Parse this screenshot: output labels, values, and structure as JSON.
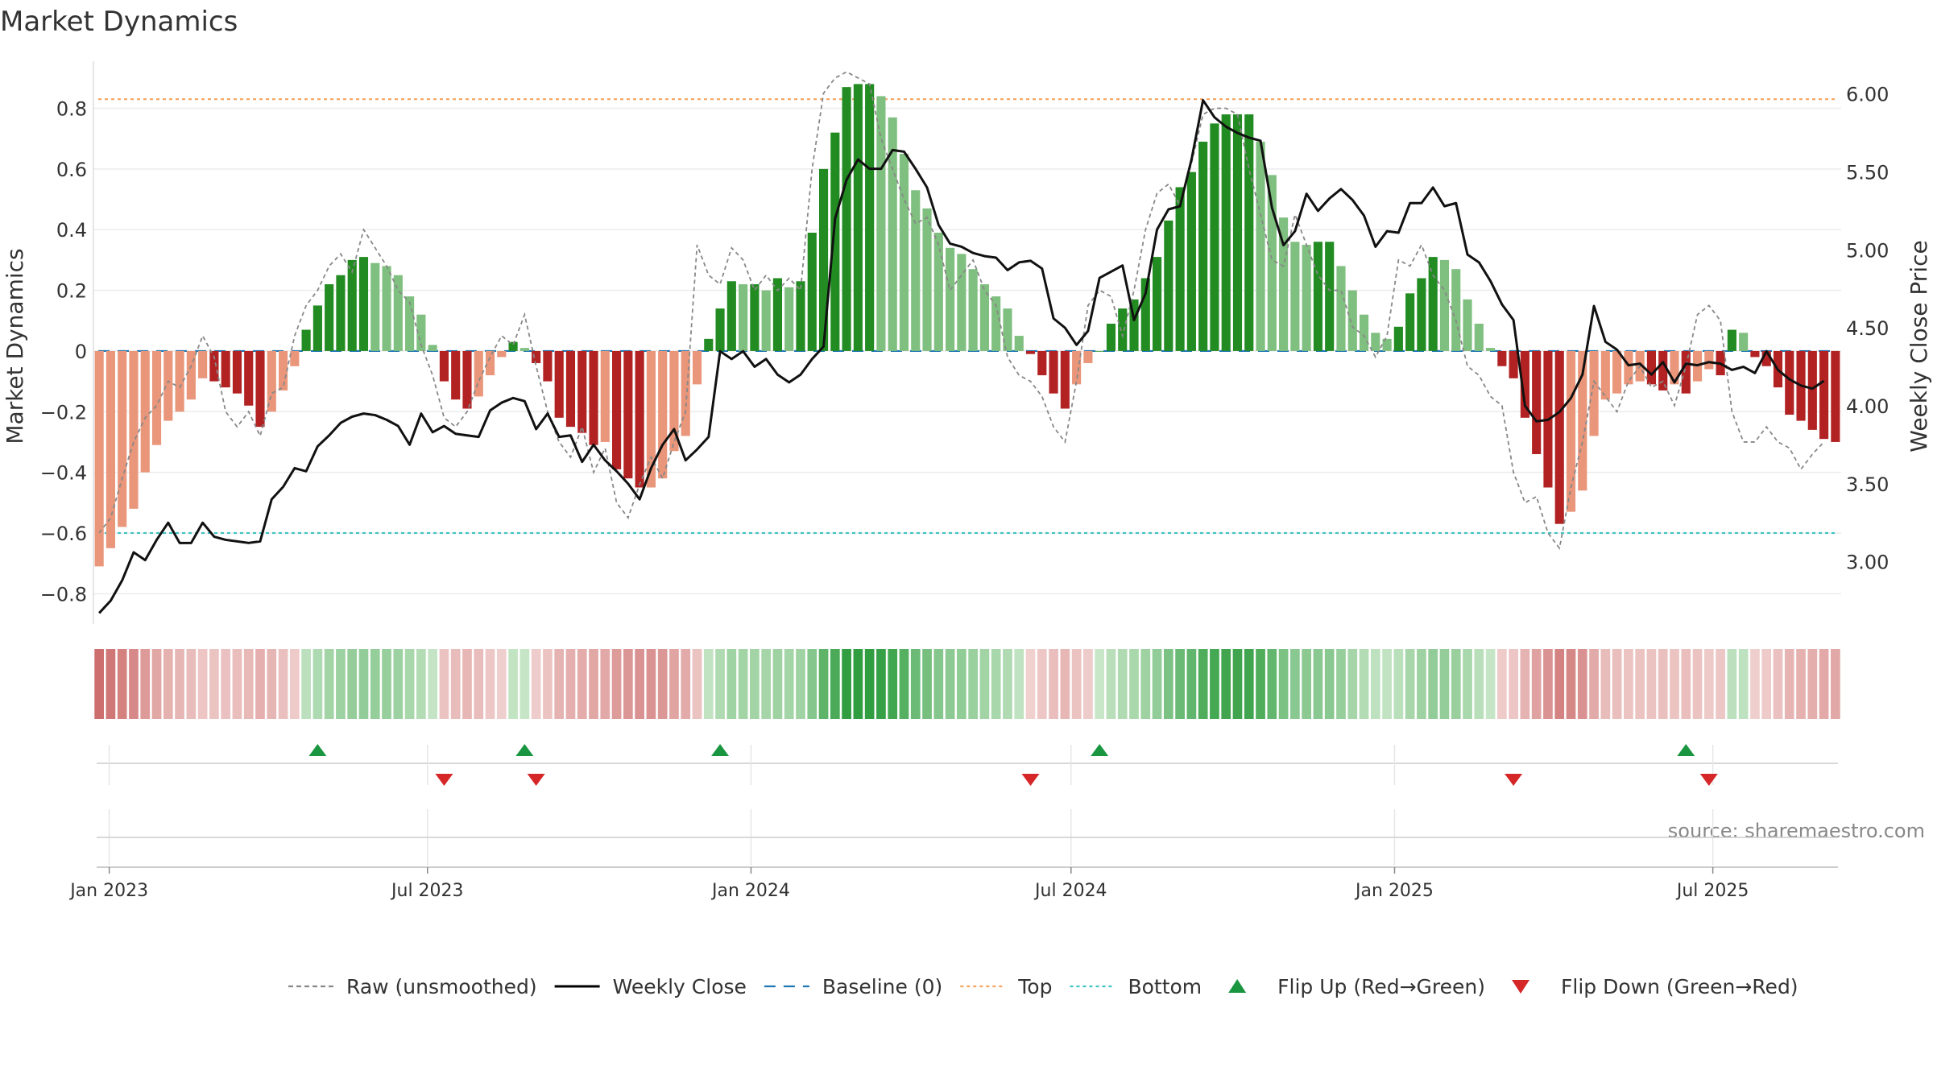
{
  "chart_data": {
    "type": "bar",
    "title": "Market Dynamics",
    "ylabel_left": "Market Dynamics",
    "ylabel_right": "Weekly Close Price",
    "source": "source: sharemaestro.com",
    "ylim_left": [
      -0.9,
      0.95
    ],
    "ylim_right": [
      2.6,
      6.2
    ],
    "yticks_left": [
      -0.8,
      -0.6,
      -0.4,
      -0.2,
      0,
      0.2,
      0.4,
      0.6,
      0.8
    ],
    "yticks_left_labels": [
      "−0.8",
      "−0.6",
      "−0.4",
      "−0.2",
      "0",
      "0.2",
      "0.4",
      "0.6",
      "0.8"
    ],
    "yticks_right": [
      3.0,
      3.5,
      4.0,
      4.5,
      5.0,
      5.5,
      6.0
    ],
    "yticks_right_labels": [
      "3.00",
      "3.50",
      "4.00",
      "4.50",
      "5.00",
      "5.50",
      "6.00"
    ],
    "x_start": "2022-12-23",
    "x_end": "2025-09-12",
    "xticks": [
      "Jan 2023",
      "Jul 2023",
      "Jan 2024",
      "Jul 2024",
      "Jan 2025",
      "Jul 2025"
    ],
    "xtick_dates": [
      "2023-01-01",
      "2023-07-01",
      "2024-01-01",
      "2024-07-01",
      "2025-01-01",
      "2025-07-01"
    ],
    "top_line": 0.83,
    "bottom_line": -0.6,
    "baseline": 0,
    "dynamics": [
      -0.71,
      -0.65,
      -0.58,
      -0.52,
      -0.4,
      -0.31,
      -0.23,
      -0.2,
      -0.16,
      -0.09,
      -0.1,
      -0.12,
      -0.14,
      -0.18,
      -0.25,
      -0.2,
      -0.13,
      -0.05,
      0.07,
      0.15,
      0.22,
      0.25,
      0.3,
      0.31,
      0.29,
      0.28,
      0.25,
      0.18,
      0.12,
      0.02,
      -0.1,
      -0.16,
      -0.19,
      -0.15,
      -0.08,
      -0.02,
      0.03,
      0.01,
      -0.04,
      -0.1,
      -0.22,
      -0.25,
      -0.27,
      -0.31,
      -0.3,
      -0.39,
      -0.42,
      -0.45,
      -0.45,
      -0.42,
      -0.33,
      -0.28,
      -0.11,
      0.04,
      0.14,
      0.23,
      0.22,
      0.22,
      0.2,
      0.24,
      0.21,
      0.23,
      0.39,
      0.6,
      0.72,
      0.87,
      0.88,
      0.88,
      0.84,
      0.77,
      0.65,
      0.53,
      0.47,
      0.39,
      0.34,
      0.32,
      0.27,
      0.22,
      0.18,
      0.14,
      0.05,
      -0.01,
      -0.08,
      -0.14,
      -0.19,
      -0.11,
      -0.04,
      0.0,
      0.09,
      0.14,
      0.17,
      0.24,
      0.31,
      0.43,
      0.54,
      0.59,
      0.69,
      0.75,
      0.78,
      0.78,
      0.78,
      0.69,
      0.58,
      0.44,
      0.36,
      0.35,
      0.36,
      0.36,
      0.28,
      0.2,
      0.12,
      0.06,
      0.04,
      0.08,
      0.19,
      0.24,
      0.31,
      0.3,
      0.27,
      0.17,
      0.09,
      0.01,
      -0.05,
      -0.09,
      -0.22,
      -0.34,
      -0.45,
      -0.57,
      -0.53,
      -0.46,
      -0.28,
      -0.16,
      -0.14,
      -0.11,
      -0.1,
      -0.11,
      -0.13,
      -0.11,
      -0.14,
      -0.1,
      -0.06,
      -0.08,
      0.07,
      0.06,
      -0.02,
      -0.05,
      -0.12,
      -0.21,
      -0.23,
      -0.26,
      -0.29,
      -0.3
    ],
    "raw": [
      -0.6,
      -0.55,
      -0.42,
      -0.3,
      -0.22,
      -0.18,
      -0.1,
      -0.12,
      -0.05,
      0.05,
      -0.02,
      -0.2,
      -0.25,
      -0.2,
      -0.28,
      -0.14,
      -0.12,
      0.05,
      0.15,
      0.2,
      0.28,
      0.32,
      0.26,
      0.4,
      0.34,
      0.28,
      0.2,
      0.16,
      0.02,
      -0.08,
      -0.22,
      -0.25,
      -0.2,
      -0.1,
      -0.02,
      0.05,
      0.02,
      0.12,
      -0.05,
      -0.2,
      -0.3,
      -0.35,
      -0.25,
      -0.4,
      -0.32,
      -0.5,
      -0.55,
      -0.44,
      -0.35,
      -0.42,
      -0.3,
      -0.2,
      0.35,
      0.25,
      0.22,
      0.34,
      0.3,
      0.2,
      0.25,
      0.2,
      0.24,
      0.2,
      0.6,
      0.85,
      0.9,
      0.92,
      0.9,
      0.88,
      0.7,
      0.6,
      0.5,
      0.42,
      0.44,
      0.35,
      0.2,
      0.25,
      0.3,
      0.2,
      0.15,
      -0.02,
      -0.08,
      -0.1,
      -0.15,
      -0.25,
      -0.3,
      -0.1,
      0.15,
      0.2,
      0.18,
      0.05,
      0.2,
      0.4,
      0.52,
      0.55,
      0.48,
      0.62,
      0.78,
      0.8,
      0.8,
      0.78,
      0.6,
      0.45,
      0.3,
      0.28,
      0.45,
      0.35,
      0.25,
      0.2,
      0.2,
      0.08,
      0.05,
      -0.02,
      0.05,
      0.3,
      0.28,
      0.35,
      0.25,
      0.2,
      0.1,
      -0.05,
      -0.08,
      -0.15,
      -0.18,
      -0.4,
      -0.5,
      -0.48,
      -0.6,
      -0.65,
      -0.45,
      -0.3,
      -0.1,
      -0.15,
      -0.2,
      -0.1,
      -0.05,
      -0.12,
      -0.1,
      -0.18,
      -0.05,
      0.12,
      0.15,
      0.1,
      -0.2,
      -0.3,
      -0.3,
      -0.25,
      -0.3,
      -0.32,
      -0.39,
      -0.34,
      -0.3
    ],
    "close": [
      2.67,
      2.75,
      2.88,
      3.06,
      3.01,
      3.14,
      3.25,
      3.12,
      3.12,
      3.25,
      3.16,
      3.14,
      3.13,
      3.12,
      3.13,
      3.4,
      3.48,
      3.6,
      3.58,
      3.74,
      3.81,
      3.89,
      3.93,
      3.95,
      3.94,
      3.91,
      3.87,
      3.75,
      3.95,
      3.83,
      3.87,
      3.82,
      3.81,
      3.8,
      3.97,
      4.02,
      4.05,
      4.03,
      3.85,
      3.95,
      3.8,
      3.81,
      3.64,
      3.75,
      3.65,
      3.58,
      3.5,
      3.4,
      3.6,
      3.75,
      3.85,
      3.65,
      3.72,
      3.8,
      4.35,
      4.3,
      4.35,
      4.25,
      4.3,
      4.2,
      4.15,
      4.2,
      4.3,
      4.38,
      5.2,
      5.45,
      5.58,
      5.52,
      5.52,
      5.64,
      5.63,
      5.52,
      5.4,
      5.16,
      5.04,
      5.02,
      4.98,
      4.96,
      4.95,
      4.87,
      4.92,
      4.93,
      4.88,
      4.56,
      4.5,
      4.39,
      4.48,
      4.82,
      4.86,
      4.9,
      4.55,
      4.72,
      5.13,
      5.26,
      5.28,
      5.58,
      5.96,
      5.85,
      5.79,
      5.75,
      5.72,
      5.7,
      5.27,
      5.03,
      5.12,
      5.36,
      5.25,
      5.33,
      5.39,
      5.32,
      5.22,
      5.02,
      5.12,
      5.11,
      5.3,
      5.3,
      5.4,
      5.28,
      5.3,
      4.97,
      4.92,
      4.8,
      4.65,
      4.55,
      4.0,
      3.9,
      3.91,
      3.96,
      4.05,
      4.2,
      4.64,
      4.41,
      4.36,
      4.26,
      4.27,
      4.2,
      4.28,
      4.15,
      4.27,
      4.26,
      4.28,
      4.27,
      4.23,
      4.25,
      4.21,
      4.35,
      4.23,
      4.17,
      4.13,
      4.11,
      4.16
    ],
    "flip_up_weeks": [
      19,
      37,
      54,
      87,
      138
    ],
    "flip_down_weeks": [
      30,
      38,
      81,
      123,
      140
    ]
  },
  "legend": [
    {
      "label": "Raw (unsmoothed)",
      "kind": "dashed",
      "color": "#888888"
    },
    {
      "label": "Weekly Close",
      "kind": "solid",
      "color": "#000000"
    },
    {
      "label": "Baseline (0)",
      "kind": "dash-long",
      "color": "#1f77b4"
    },
    {
      "label": "Top",
      "kind": "dotted",
      "color": "#f4a460"
    },
    {
      "label": "Bottom",
      "kind": "dotted",
      "color": "#40c4c4"
    },
    {
      "label": "Flip Up (Red→Green)",
      "kind": "up",
      "color": "#1a9641"
    },
    {
      "label": "Flip Down (Green→Red)",
      "kind": "down",
      "color": "#d62728"
    }
  ],
  "colors": {
    "strong_green": "#228b22",
    "light_green": "#7fbf7f",
    "strong_red": "#b22222",
    "light_red": "#e9967a",
    "top_line": "#f4a460",
    "bottom_line": "#40c4c4",
    "baseline": "#1f77b4",
    "raw": "#888888",
    "close": "#111111",
    "flip_up": "#1a9641",
    "flip_down": "#d62728",
    "grid": "#ececec",
    "text": "#333333"
  }
}
